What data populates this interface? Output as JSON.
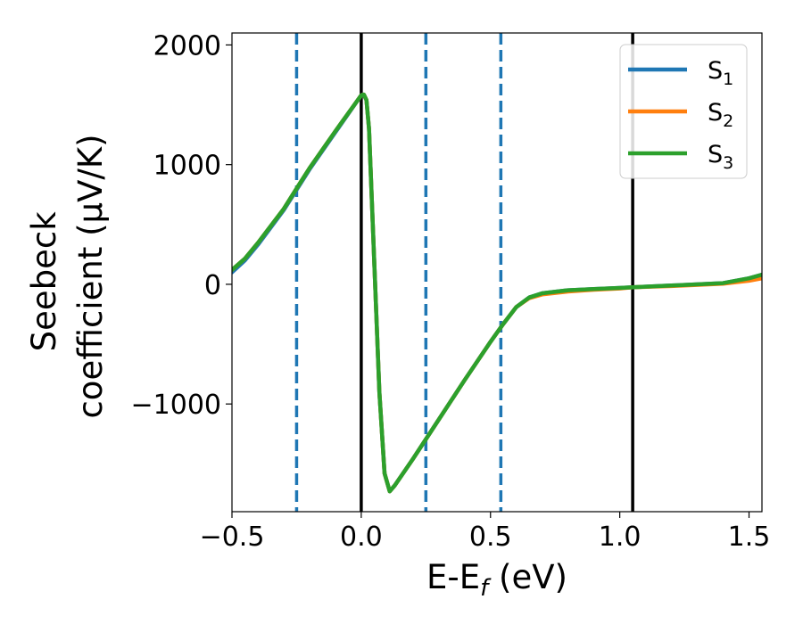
{
  "chart_data": {
    "type": "line",
    "title": "",
    "xlabel": "E-E_f (eV)",
    "ylabel": "Seebeck coefficient (μV/K)",
    "xlabel_parts": {
      "main": "E-E",
      "sub": "f",
      "tail": " (eV)"
    },
    "ylabel_lines": [
      "Seebeck",
      "coefficient  (μV/K)"
    ],
    "xlim": [
      -0.5,
      1.55
    ],
    "ylim": [
      -1900,
      2100
    ],
    "x_ticks": [
      -0.5,
      0.0,
      0.5,
      1.0,
      1.5
    ],
    "x_tick_labels": [
      "−0.5",
      "0.0",
      "0.5",
      "1.0",
      "1.5"
    ],
    "y_ticks": [
      -1000,
      0,
      1000,
      2000
    ],
    "y_tick_labels": [
      "−1000",
      "0",
      "1000",
      "2000"
    ],
    "grid": false,
    "legend_position": "top-right",
    "vertical_lines": [
      {
        "x": -0.25,
        "style": "dashed",
        "color": "#1f77b4"
      },
      {
        "x": 0.0,
        "style": "solid",
        "color": "#000000"
      },
      {
        "x": 0.25,
        "style": "dashed",
        "color": "#1f77b4"
      },
      {
        "x": 0.54,
        "style": "dashed",
        "color": "#1f77b4"
      },
      {
        "x": 1.05,
        "style": "solid",
        "color": "#000000"
      }
    ],
    "series": [
      {
        "name": "S_1",
        "label_main": "S",
        "label_sub": "1",
        "color": "#1f77b4",
        "x": [
          -0.5,
          -0.45,
          -0.4,
          -0.3,
          -0.25,
          -0.2,
          -0.1,
          0.0,
          0.01,
          0.02,
          0.03,
          0.05,
          0.07,
          0.09,
          0.11,
          0.13,
          0.2,
          0.3,
          0.4,
          0.5,
          0.55,
          0.6,
          0.65,
          0.7,
          0.8,
          0.9,
          1.0,
          1.05,
          1.2,
          1.4,
          1.5,
          1.55
        ],
        "values": [
          100,
          200,
          330,
          620,
          790,
          960,
          1270,
          1580,
          1585,
          1540,
          1300,
          200,
          -900,
          -1580,
          -1730,
          -1680,
          -1460,
          -1130,
          -800,
          -480,
          -330,
          -190,
          -110,
          -75,
          -50,
          -40,
          -30,
          -25,
          -10,
          10,
          50,
          80
        ]
      },
      {
        "name": "S_2",
        "label_main": "S",
        "label_sub": "2",
        "color": "#ff7f0e",
        "x": [
          -0.5,
          -0.45,
          -0.4,
          -0.3,
          -0.25,
          -0.2,
          -0.1,
          0.0,
          0.01,
          0.02,
          0.03,
          0.05,
          0.07,
          0.09,
          0.11,
          0.13,
          0.2,
          0.3,
          0.4,
          0.5,
          0.55,
          0.6,
          0.65,
          0.7,
          0.8,
          0.9,
          1.0,
          1.05,
          1.2,
          1.4,
          1.5,
          1.55
        ],
        "values": [
          120,
          215,
          345,
          630,
          800,
          970,
          1280,
          1580,
          1585,
          1540,
          1300,
          200,
          -900,
          -1580,
          -1730,
          -1680,
          -1460,
          -1130,
          -800,
          -480,
          -330,
          -190,
          -115,
          -85,
          -60,
          -45,
          -35,
          -25,
          -15,
          5,
          30,
          50
        ]
      },
      {
        "name": "S_3",
        "label_main": "S",
        "label_sub": "3",
        "color": "#2ca02c",
        "x": [
          -0.5,
          -0.45,
          -0.4,
          -0.3,
          -0.25,
          -0.2,
          -0.1,
          0.0,
          0.01,
          0.02,
          0.03,
          0.05,
          0.07,
          0.09,
          0.11,
          0.13,
          0.2,
          0.3,
          0.4,
          0.5,
          0.55,
          0.6,
          0.65,
          0.7,
          0.8,
          0.9,
          1.0,
          1.05,
          1.2,
          1.4,
          1.5,
          1.55
        ],
        "values": [
          120,
          215,
          345,
          630,
          800,
          970,
          1280,
          1580,
          1585,
          1540,
          1300,
          200,
          -900,
          -1580,
          -1730,
          -1680,
          -1460,
          -1130,
          -800,
          -480,
          -330,
          -190,
          -110,
          -75,
          -50,
          -40,
          -30,
          -25,
          -10,
          10,
          50,
          80
        ]
      }
    ]
  }
}
